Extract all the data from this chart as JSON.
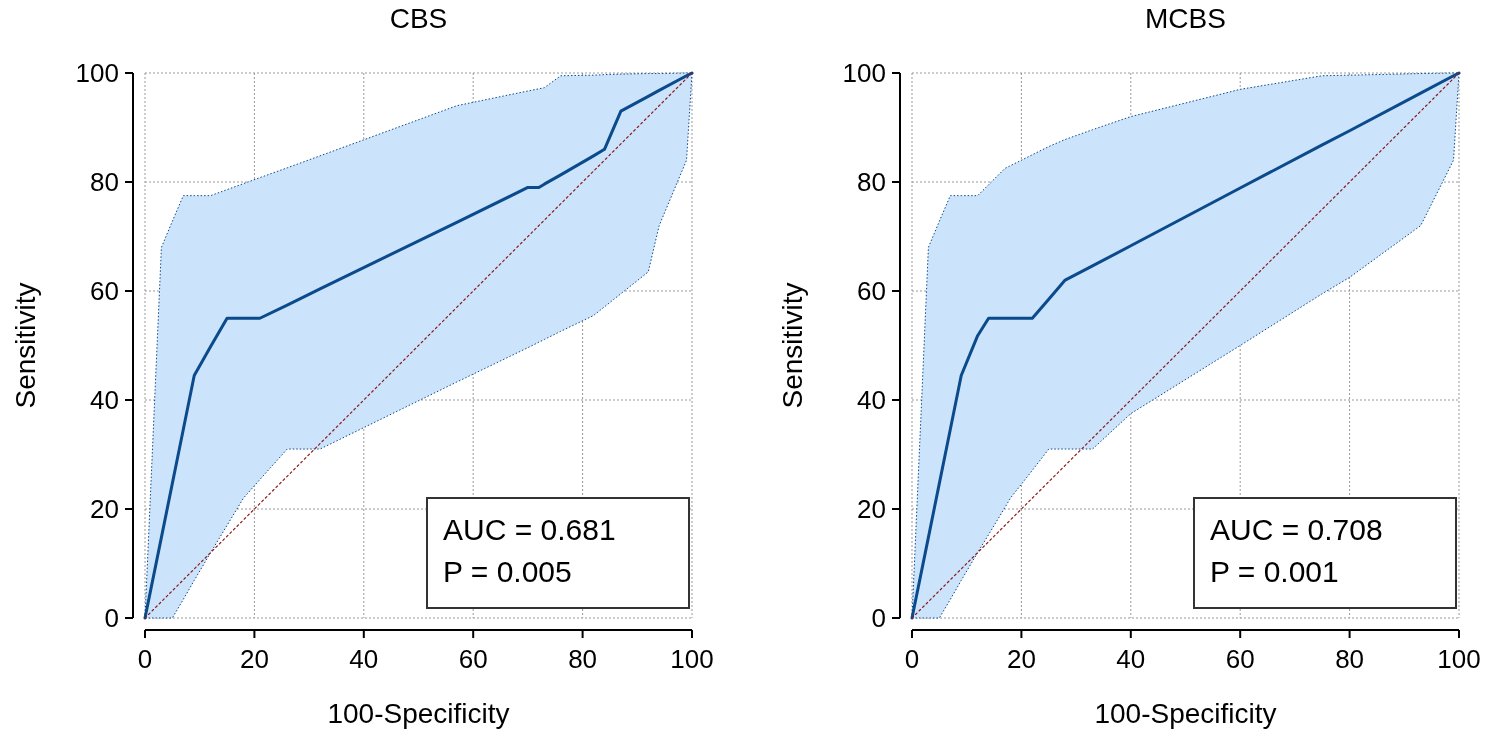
{
  "chart_data": [
    {
      "type": "line",
      "title": "CBS",
      "xlabel": "100-Specificity",
      "ylabel": "Sensitivity",
      "xlim": [
        0,
        100
      ],
      "ylim": [
        0,
        100
      ],
      "xticks": [
        0,
        20,
        40,
        60,
        80,
        100
      ],
      "yticks": [
        0,
        20,
        40,
        60,
        80,
        100
      ],
      "grid": true,
      "annotations": [
        "AUC = 0.681",
        "P = 0.005"
      ],
      "series": [
        {
          "color": "#0b4a8b",
          "x": [
            0,
            3,
            5,
            7,
            9,
            12,
            15,
            18,
            21,
            26,
            32,
            57,
            70,
            72,
            73,
            76,
            82,
            84,
            87,
            92,
            94,
            99,
            100
          ],
          "values": [
            0,
            14.8,
            24.7,
            34.6,
            44.5,
            49.8,
            55,
            55,
            55,
            57.4,
            60.4,
            72.6,
            79,
            79,
            79.6,
            81.3,
            84.8,
            86,
            93,
            95.7,
            96.8,
            99.5,
            100
          ],
          "upper": [
            0,
            68,
            72.8,
            77.5,
            77.5,
            77.5,
            78.6,
            79.7,
            80.8,
            82.6,
            84.8,
            94,
            96.7,
            97.1,
            97.3,
            99.5,
            99.6,
            99.7,
            99.8,
            99.9,
            99.9,
            100,
            100
          ],
          "lower": [
            0,
            0,
            0,
            3.4,
            6.9,
            12,
            17,
            22,
            25.4,
            31,
            31,
            43.3,
            49.6,
            50.6,
            51.1,
            52.6,
            55.5,
            57.1,
            59.5,
            63.5,
            72,
            84,
            100
          ]
        },
        {
          "color": "#8b1a1a",
          "line_style": "dotted",
          "x": [
            0,
            100
          ],
          "values": [
            0,
            100
          ]
        }
      ]
    },
    {
      "type": "line",
      "title": "MCBS",
      "xlabel": "100-Specificity",
      "ylabel": "Sensitivity",
      "xlim": [
        0,
        100
      ],
      "ylim": [
        0,
        100
      ],
      "xticks": [
        0,
        20,
        40,
        60,
        80,
        100
      ],
      "yticks": [
        0,
        20,
        40,
        60,
        80,
        100
      ],
      "grid": true,
      "annotations": [
        "AUC = 0.708",
        "P = 0.001"
      ],
      "series": [
        {
          "color": "#0b4a8b",
          "x": [
            0,
            3,
            5,
            7,
            9,
            12,
            14,
            17,
            18,
            22,
            25,
            28,
            33,
            40,
            60,
            75,
            80,
            93,
            99,
            100
          ],
          "values": [
            0,
            14.8,
            24.7,
            34.6,
            44.5,
            51.8,
            55,
            55,
            55,
            55,
            58.5,
            62,
            64.6,
            68.3,
            78.9,
            86.8,
            89.4,
            96.3,
            99.5,
            100
          ],
          "upper": [
            0,
            68,
            72.8,
            77.5,
            77.5,
            77.5,
            79.5,
            82.5,
            83,
            85,
            86.5,
            87.8,
            89.6,
            92,
            97,
            99.5,
            99.6,
            99.9,
            100,
            100
          ],
          "lower": [
            0,
            0,
            0,
            3.4,
            6.9,
            12,
            15.3,
            20.3,
            22,
            27.1,
            31,
            31,
            31,
            37.5,
            50,
            59.5,
            62.5,
            72,
            84,
            100
          ]
        },
        {
          "color": "#8b1a1a",
          "line_style": "dotted",
          "x": [
            0,
            100
          ],
          "values": [
            0,
            100
          ]
        }
      ]
    }
  ]
}
